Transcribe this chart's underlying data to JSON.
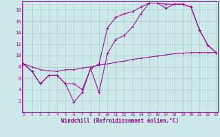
{
  "xlabel": "Windchill (Refroidissement éolien,°C)",
  "background_color": "#cce8e8",
  "grid_color": "#aacccc",
  "line_color": "#990099",
  "x_min": 0,
  "x_max": 23,
  "y_min": 0,
  "y_max": 19.5,
  "line1_x": [
    0,
    1,
    2,
    3,
    4,
    5,
    6,
    7,
    8,
    9,
    10,
    11,
    12,
    13,
    14,
    15,
    16,
    17,
    18,
    19,
    20,
    21,
    22,
    23
  ],
  "line1_y": [
    8.5,
    7.2,
    5.0,
    6.5,
    6.5,
    5.0,
    1.8,
    3.5,
    7.7,
    8.5,
    14.8,
    16.7,
    17.3,
    17.7,
    18.5,
    19.2,
    19.2,
    19.0,
    19.0,
    19.0,
    18.5,
    14.5,
    11.8,
    10.5
  ],
  "line2_x": [
    0,
    1,
    2,
    3,
    4,
    5,
    6,
    7,
    8,
    9,
    10,
    11,
    12,
    13,
    14,
    15,
    16,
    17,
    18,
    19,
    20,
    21,
    22,
    23
  ],
  "line2_y": [
    8.5,
    7.2,
    5.0,
    6.5,
    6.5,
    5.0,
    5.0,
    4.0,
    7.7,
    3.5,
    10.3,
    12.8,
    13.5,
    15.0,
    17.3,
    19.2,
    19.2,
    18.3,
    19.0,
    19.0,
    18.5,
    14.5,
    11.8,
    10.5
  ],
  "line3_x": [
    0,
    1,
    2,
    3,
    4,
    5,
    6,
    7,
    8,
    9,
    10,
    11,
    12,
    13,
    14,
    15,
    16,
    17,
    18,
    19,
    20,
    21,
    22,
    23
  ],
  "line3_y": [
    8.5,
    8.0,
    7.5,
    7.3,
    7.2,
    7.5,
    7.5,
    7.8,
    8.0,
    8.3,
    8.5,
    8.8,
    9.0,
    9.3,
    9.5,
    9.7,
    9.9,
    10.1,
    10.3,
    10.4,
    10.5,
    10.5,
    10.5,
    10.5
  ],
  "yticks": [
    2,
    4,
    6,
    8,
    10,
    12,
    14,
    16,
    18
  ],
  "xticks": [
    0,
    1,
    2,
    3,
    4,
    5,
    6,
    7,
    8,
    9,
    10,
    11,
    12,
    13,
    14,
    15,
    16,
    17,
    18,
    19,
    20,
    21,
    22,
    23
  ],
  "tick_fontsize": 4.5,
  "xlabel_fontsize": 5.5
}
